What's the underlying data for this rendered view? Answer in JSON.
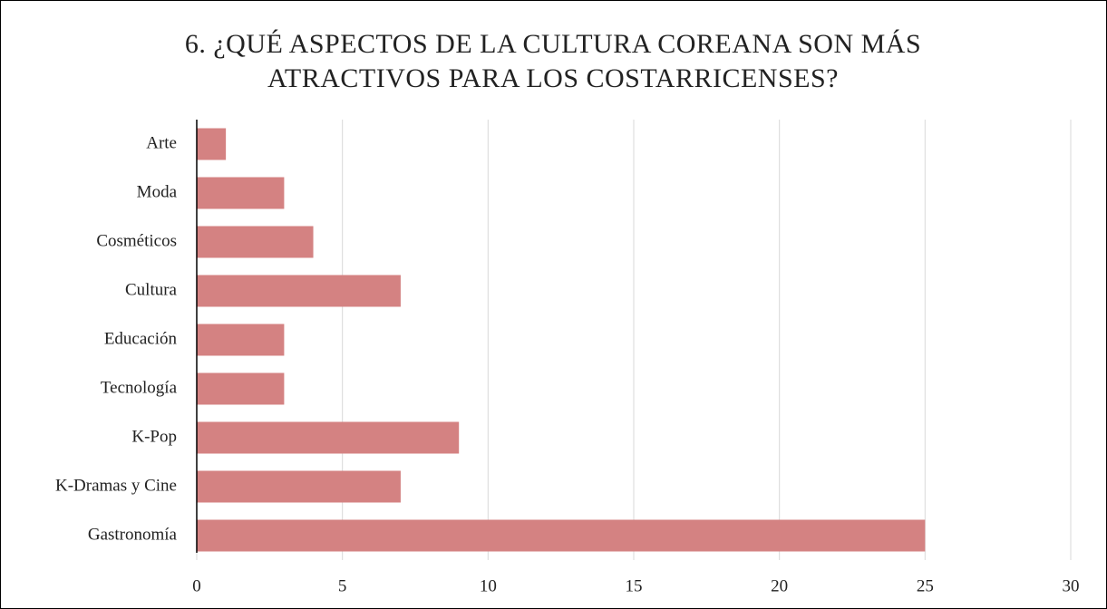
{
  "chart_data": {
    "type": "bar",
    "orientation": "horizontal",
    "title": "6. ¿QUÉ ASPECTOS DE LA CULTURA COREANA SON MÁS ATRACTIVOS PARA LOS COSTARRICENSES?",
    "categories": [
      "Arte",
      "Moda",
      "Cosméticos",
      "Cultura",
      "Educación",
      "Tecnología",
      "K-Pop",
      "K-Dramas y Cine",
      "Gastronomía"
    ],
    "values": [
      1,
      3,
      4,
      7,
      3,
      3,
      9,
      7,
      25
    ],
    "color": "#d48282",
    "xlim": [
      0,
      30
    ],
    "xticks": [
      0,
      5,
      10,
      15,
      20,
      25,
      30
    ],
    "grid": true
  }
}
